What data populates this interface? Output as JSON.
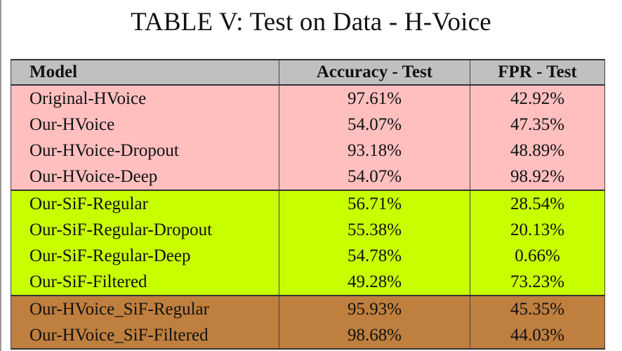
{
  "caption": "TABLE V: Test on Data - H-Voice",
  "table": {
    "headers": [
      "Model",
      "Accuracy - Test",
      "FPR - Test"
    ],
    "group_colors": {
      "pink": "#ffbfbf",
      "green": "#c8ff00",
      "brown": "#bf7f3f"
    },
    "rows": [
      {
        "model": "Original-HVoice",
        "accuracy": "97.61%",
        "fpr": "42.92%"
      },
      {
        "model": "Our-HVoice",
        "accuracy": "54.07%",
        "fpr": "47.35%"
      },
      {
        "model": "Our-HVoice-Dropout",
        "accuracy": "93.18%",
        "fpr": "48.89%"
      },
      {
        "model": "Our-HVoice-Deep",
        "accuracy": "54.07%",
        "fpr": "98.92%"
      },
      {
        "model": "Our-SiF-Regular",
        "accuracy": "56.71%",
        "fpr": "28.54%"
      },
      {
        "model": "Our-SiF-Regular-Dropout",
        "accuracy": "55.38%",
        "fpr": "20.13%"
      },
      {
        "model": "Our-SiF-Regular-Deep",
        "accuracy": "54.78%",
        "fpr": "0.66%"
      },
      {
        "model": "Our-SiF-Filtered",
        "accuracy": "49.28%",
        "fpr": "73.23%"
      },
      {
        "model": "Our-HVoice_SiF-Regular",
        "accuracy": "95.93%",
        "fpr": "45.35%"
      },
      {
        "model": "Our-HVoice_SiF-Filtered",
        "accuracy": "98.68%",
        "fpr": "44.03%"
      }
    ]
  }
}
